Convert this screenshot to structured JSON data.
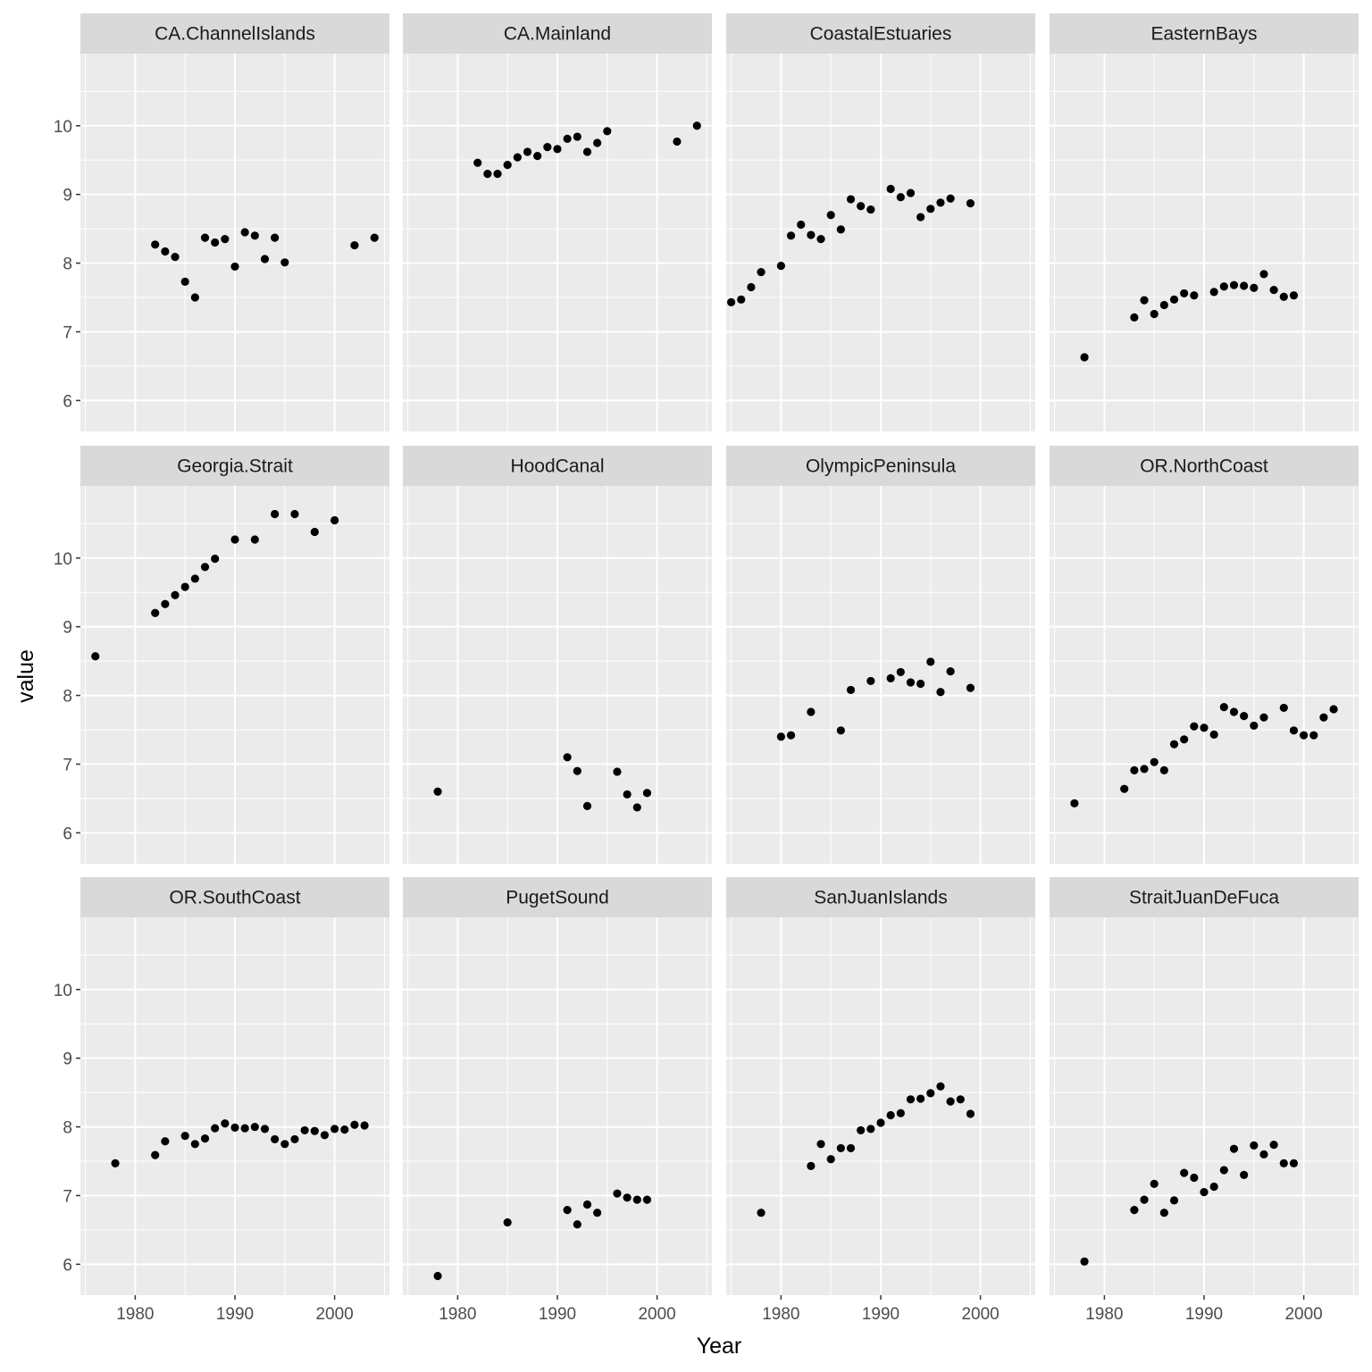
{
  "chart_data": {
    "type": "scatter",
    "xlabel": "Year",
    "ylabel": "value",
    "xlim": [
      1974.5,
      2005.5
    ],
    "ylim": [
      5.55,
      11.05
    ],
    "x_ticks": [
      1980,
      1990,
      2000
    ],
    "y_ticks": [
      6,
      7,
      8,
      9,
      10
    ],
    "grid": true,
    "facet_layout": {
      "rows": 3,
      "cols": 4
    },
    "colors": {
      "panel_bg": "#ebebeb",
      "strip_bg": "#d9d9d9",
      "grid": "#ffffff",
      "point": "#000000"
    },
    "panels": [
      {
        "name": "CA.ChannelIslands",
        "points": [
          [
            1982,
            8.27
          ],
          [
            1983,
            8.17
          ],
          [
            1984,
            8.09
          ],
          [
            1985,
            7.73
          ],
          [
            1986,
            7.5
          ],
          [
            1987,
            8.37
          ],
          [
            1988,
            8.3
          ],
          [
            1989,
            8.35
          ],
          [
            1990,
            7.95
          ],
          [
            1991,
            8.45
          ],
          [
            1992,
            8.4
          ],
          [
            1993,
            8.06
          ],
          [
            1994,
            8.37
          ],
          [
            1995,
            8.01
          ],
          [
            2002,
            8.26
          ],
          [
            2004,
            8.37
          ]
        ]
      },
      {
        "name": "CA.Mainland",
        "points": [
          [
            1982,
            9.46
          ],
          [
            1983,
            9.3
          ],
          [
            1984,
            9.3
          ],
          [
            1985,
            9.43
          ],
          [
            1986,
            9.54
          ],
          [
            1987,
            9.62
          ],
          [
            1988,
            9.56
          ],
          [
            1989,
            9.69
          ],
          [
            1990,
            9.66
          ],
          [
            1991,
            9.81
          ],
          [
            1992,
            9.84
          ],
          [
            1993,
            9.62
          ],
          [
            1994,
            9.75
          ],
          [
            1995,
            9.92
          ],
          [
            2002,
            9.77
          ],
          [
            2004,
            10.0
          ]
        ]
      },
      {
        "name": "CoastalEstuaries",
        "points": [
          [
            1975,
            7.43
          ],
          [
            1976,
            7.47
          ],
          [
            1977,
            7.65
          ],
          [
            1978,
            7.87
          ],
          [
            1980,
            7.96
          ],
          [
            1981,
            8.4
          ],
          [
            1982,
            8.56
          ],
          [
            1983,
            8.41
          ],
          [
            1984,
            8.35
          ],
          [
            1985,
            8.7
          ],
          [
            1986,
            8.49
          ],
          [
            1987,
            8.93
          ],
          [
            1988,
            8.83
          ],
          [
            1989,
            8.78
          ],
          [
            1991,
            9.08
          ],
          [
            1992,
            8.96
          ],
          [
            1993,
            9.02
          ],
          [
            1994,
            8.67
          ],
          [
            1995,
            8.79
          ],
          [
            1996,
            8.88
          ],
          [
            1997,
            8.94
          ],
          [
            1999,
            8.87
          ]
        ]
      },
      {
        "name": "EasternBays",
        "points": [
          [
            1978,
            6.63
          ],
          [
            1983,
            7.21
          ],
          [
            1984,
            7.46
          ],
          [
            1985,
            7.26
          ],
          [
            1986,
            7.39
          ],
          [
            1987,
            7.47
          ],
          [
            1988,
            7.56
          ],
          [
            1989,
            7.53
          ],
          [
            1991,
            7.58
          ],
          [
            1992,
            7.66
          ],
          [
            1993,
            7.68
          ],
          [
            1994,
            7.67
          ],
          [
            1995,
            7.64
          ],
          [
            1996,
            7.84
          ],
          [
            1997,
            7.61
          ],
          [
            1998,
            7.51
          ],
          [
            1999,
            7.53
          ]
        ]
      },
      {
        "name": "Georgia.Strait",
        "points": [
          [
            1976,
            8.57
          ],
          [
            1982,
            9.2
          ],
          [
            1983,
            9.33
          ],
          [
            1984,
            9.46
          ],
          [
            1985,
            9.58
          ],
          [
            1986,
            9.7
          ],
          [
            1987,
            9.87
          ],
          [
            1988,
            9.99
          ],
          [
            1990,
            10.27
          ],
          [
            1992,
            10.27
          ],
          [
            1994,
            10.64
          ],
          [
            1996,
            10.64
          ],
          [
            1998,
            10.38
          ],
          [
            2000,
            10.55
          ]
        ]
      },
      {
        "name": "HoodCanal",
        "points": [
          [
            1978,
            6.6
          ],
          [
            1991,
            7.1
          ],
          [
            1992,
            6.9
          ],
          [
            1993,
            6.39
          ],
          [
            1996,
            6.89
          ],
          [
            1997,
            6.56
          ],
          [
            1998,
            6.37
          ],
          [
            1999,
            6.58
          ]
        ]
      },
      {
        "name": "OlympicPeninsula",
        "points": [
          [
            1980,
            7.4
          ],
          [
            1981,
            7.42
          ],
          [
            1983,
            7.76
          ],
          [
            1986,
            7.49
          ],
          [
            1987,
            8.08
          ],
          [
            1989,
            8.21
          ],
          [
            1991,
            8.25
          ],
          [
            1992,
            8.34
          ],
          [
            1993,
            8.19
          ],
          [
            1994,
            8.17
          ],
          [
            1995,
            8.49
          ],
          [
            1996,
            8.05
          ],
          [
            1997,
            8.35
          ],
          [
            1999,
            8.11
          ]
        ]
      },
      {
        "name": "OR.NorthCoast",
        "points": [
          [
            1977,
            6.43
          ],
          [
            1982,
            6.64
          ],
          [
            1983,
            6.91
          ],
          [
            1984,
            6.93
          ],
          [
            1985,
            7.03
          ],
          [
            1986,
            6.91
          ],
          [
            1987,
            7.29
          ],
          [
            1988,
            7.36
          ],
          [
            1989,
            7.55
          ],
          [
            1990,
            7.53
          ],
          [
            1991,
            7.43
          ],
          [
            1992,
            7.83
          ],
          [
            1993,
            7.76
          ],
          [
            1994,
            7.7
          ],
          [
            1995,
            7.56
          ],
          [
            1996,
            7.68
          ],
          [
            1998,
            7.82
          ],
          [
            1999,
            7.49
          ],
          [
            2000,
            7.42
          ],
          [
            2001,
            7.42
          ],
          [
            2002,
            7.68
          ],
          [
            2003,
            7.8
          ]
        ]
      },
      {
        "name": "OR.SouthCoast",
        "points": [
          [
            1978,
            7.47
          ],
          [
            1982,
            7.59
          ],
          [
            1983,
            7.79
          ],
          [
            1985,
            7.87
          ],
          [
            1986,
            7.75
          ],
          [
            1987,
            7.83
          ],
          [
            1988,
            7.98
          ],
          [
            1989,
            8.05
          ],
          [
            1990,
            7.99
          ],
          [
            1991,
            7.98
          ],
          [
            1992,
            8.0
          ],
          [
            1993,
            7.97
          ],
          [
            1994,
            7.82
          ],
          [
            1995,
            7.75
          ],
          [
            1996,
            7.82
          ],
          [
            1997,
            7.95
          ],
          [
            1998,
            7.94
          ],
          [
            1999,
            7.88
          ],
          [
            2000,
            7.97
          ],
          [
            2001,
            7.96
          ],
          [
            2002,
            8.03
          ],
          [
            2003,
            8.02
          ]
        ]
      },
      {
        "name": "PugetSound",
        "points": [
          [
            1978,
            5.83
          ],
          [
            1985,
            6.61
          ],
          [
            1991,
            6.79
          ],
          [
            1992,
            6.58
          ],
          [
            1993,
            6.87
          ],
          [
            1994,
            6.75
          ],
          [
            1996,
            7.03
          ],
          [
            1997,
            6.97
          ],
          [
            1998,
            6.94
          ],
          [
            1999,
            6.94
          ]
        ]
      },
      {
        "name": "SanJuanIslands",
        "points": [
          [
            1978,
            6.75
          ],
          [
            1983,
            7.43
          ],
          [
            1984,
            7.75
          ],
          [
            1985,
            7.53
          ],
          [
            1986,
            7.69
          ],
          [
            1987,
            7.69
          ],
          [
            1988,
            7.95
          ],
          [
            1989,
            7.97
          ],
          [
            1990,
            8.06
          ],
          [
            1991,
            8.17
          ],
          [
            1992,
            8.2
          ],
          [
            1993,
            8.4
          ],
          [
            1994,
            8.41
          ],
          [
            1995,
            8.49
          ],
          [
            1996,
            8.59
          ],
          [
            1997,
            8.37
          ],
          [
            1998,
            8.4
          ],
          [
            1999,
            8.19
          ]
        ]
      },
      {
        "name": "StraitJuanDeFuca",
        "points": [
          [
            1978,
            6.04
          ],
          [
            1983,
            6.79
          ],
          [
            1984,
            6.94
          ],
          [
            1985,
            7.17
          ],
          [
            1986,
            6.75
          ],
          [
            1987,
            6.93
          ],
          [
            1988,
            7.33
          ],
          [
            1989,
            7.26
          ],
          [
            1990,
            7.05
          ],
          [
            1991,
            7.13
          ],
          [
            1992,
            7.37
          ],
          [
            1993,
            7.68
          ],
          [
            1994,
            7.3
          ],
          [
            1995,
            7.73
          ],
          [
            1996,
            7.6
          ],
          [
            1997,
            7.74
          ],
          [
            1998,
            7.47
          ],
          [
            1999,
            7.47
          ]
        ]
      }
    ]
  }
}
